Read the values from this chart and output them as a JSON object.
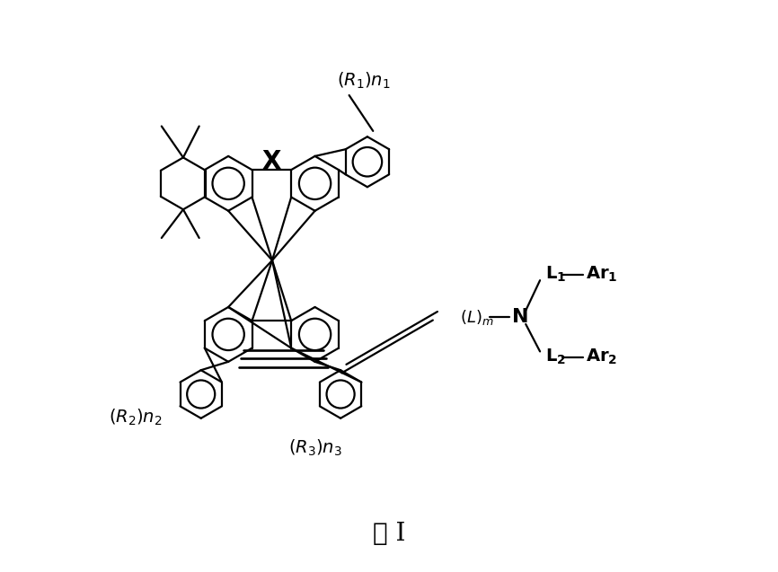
{
  "bg_color": "#ffffff",
  "line_color": "#000000",
  "lw": 1.6,
  "fig_width": 8.66,
  "fig_height": 6.37,
  "title": "式 I",
  "title_fontsize": 20,
  "label_fontsize": 14,
  "bold_fontsize": 16,
  "x_label_fontsize": 20
}
